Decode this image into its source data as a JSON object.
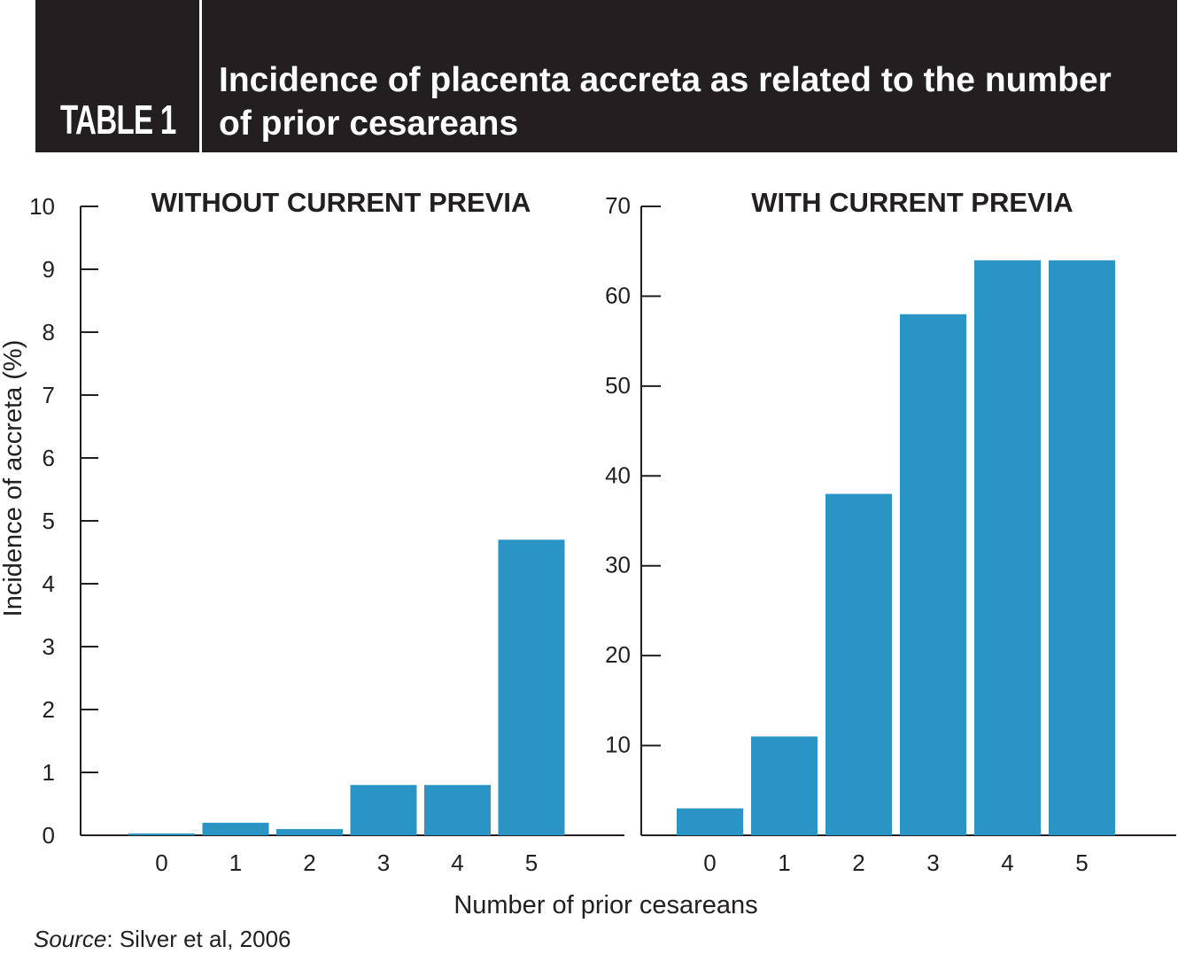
{
  "header": {
    "table_label": "TABLE 1",
    "title": "Incidence of placenta accreta as related to the number of prior cesareans"
  },
  "chart_data": [
    {
      "type": "bar",
      "title": "WITHOUT CURRENT PREVIA",
      "ylabel": "Incidence of accreta (%)",
      "xlabel": "Number of prior cesareans",
      "categories": [
        "0",
        "1",
        "2",
        "3",
        "4",
        "5"
      ],
      "values": [
        0.03,
        0.2,
        0.1,
        0.8,
        0.8,
        4.7
      ],
      "ylim": [
        0,
        10
      ],
      "yticks": [
        0,
        1,
        2,
        3,
        4,
        5,
        6,
        7,
        8,
        9,
        10
      ],
      "bar_color": "#2a94c5"
    },
    {
      "type": "bar",
      "title": "WITH CURRENT PREVIA",
      "ylabel": "",
      "xlabel": "Number of prior cesareans",
      "categories": [
        "0",
        "1",
        "2",
        "3",
        "4",
        "5"
      ],
      "values": [
        3,
        11,
        38,
        58,
        64,
        64
      ],
      "ylim": [
        0,
        70
      ],
      "yticks": [
        10,
        20,
        30,
        40,
        50,
        60,
        70
      ],
      "bar_color": "#2a94c5"
    }
  ],
  "shared_xlabel": "Number of prior cesareans",
  "source": {
    "label": "Source",
    "text": ": Silver et al, 2006"
  },
  "colors": {
    "header_bg": "#231f20",
    "bar": "#2a94c5",
    "text": "#231f20"
  }
}
